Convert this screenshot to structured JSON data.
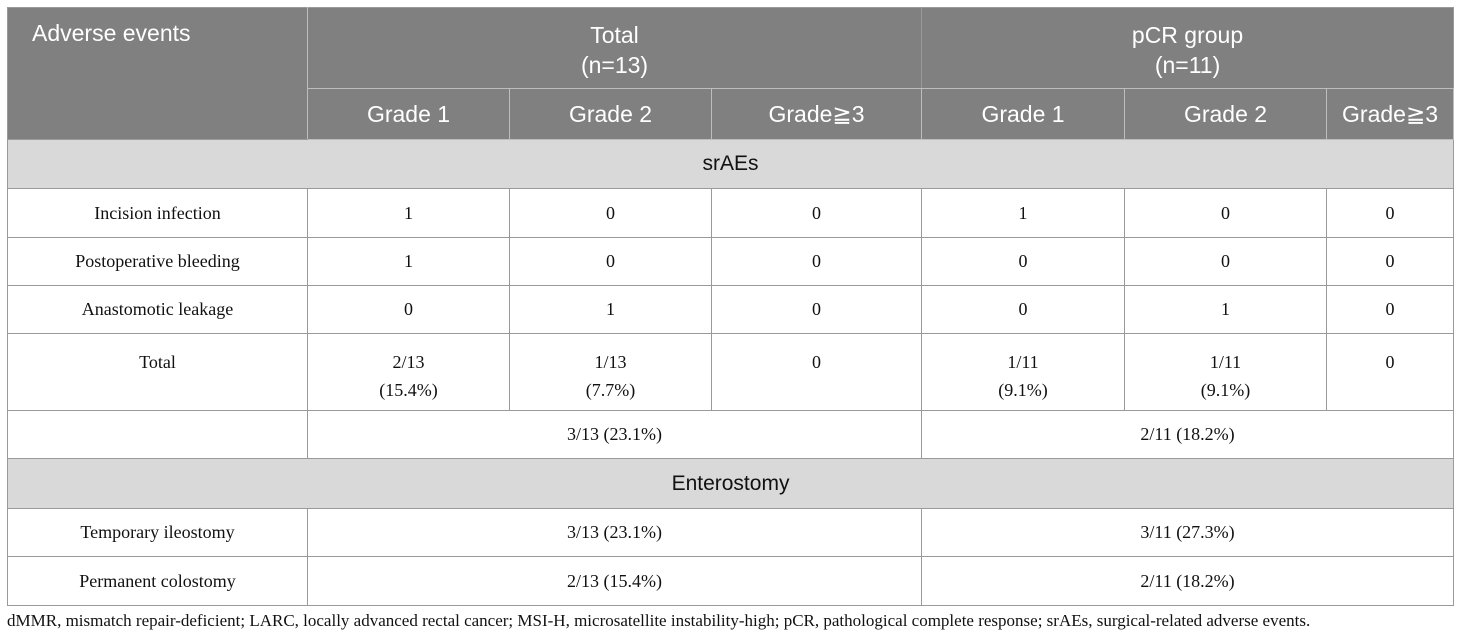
{
  "header": {
    "adverse_events": "Adverse events",
    "total": {
      "line1": "Total",
      "line2": "(n=13)"
    },
    "pcr": {
      "line1": "pCR group",
      "line2": "(n=11)"
    },
    "grades": [
      "Grade 1",
      "Grade 2",
      "Grade≧3",
      "Grade 1",
      "Grade 2",
      "Grade≧3"
    ]
  },
  "sections": {
    "sraes": "srAEs",
    "enterostomy": "Enterostomy"
  },
  "srae_rows": [
    {
      "label": "Incision infection",
      "values": [
        "1",
        "0",
        "0",
        "1",
        "0",
        "0"
      ]
    },
    {
      "label": "Postoperative bleeding",
      "values": [
        "1",
        "0",
        "0",
        "0",
        "0",
        "0"
      ]
    },
    {
      "label": "Anastomotic leakage",
      "values": [
        "0",
        "1",
        "0",
        "0",
        "1",
        "0"
      ]
    }
  ],
  "total_row": {
    "label": "Total",
    "t_g1": {
      "a": "2/13",
      "b": "(15.4%)"
    },
    "t_g2": {
      "a": "1/13",
      "b": "(7.7%)"
    },
    "t_g3": "0",
    "p_g1": {
      "a": "1/11",
      "b": "(9.1%)"
    },
    "p_g2": {
      "a": "1/11",
      "b": "(9.1%)"
    },
    "p_g3": "0"
  },
  "summary_row": {
    "total": "3/13 (23.1%)",
    "pcr": "2/11 (18.2%)"
  },
  "enterostomy_rows": [
    {
      "label": "Temporary ileostomy",
      "total": "3/13 (23.1%)",
      "pcr": "3/11 (27.3%)"
    },
    {
      "label": "Permanent colostomy",
      "total": "2/13 (15.4%)",
      "pcr": "2/11 (18.2%)"
    }
  ],
  "footnote": "dMMR, mismatch repair-deficient; LARC, locally advanced rectal cancer; MSI-H, microsatellite instability-high; pCR, pathological complete response; srAEs, surgical-related adverse events."
}
